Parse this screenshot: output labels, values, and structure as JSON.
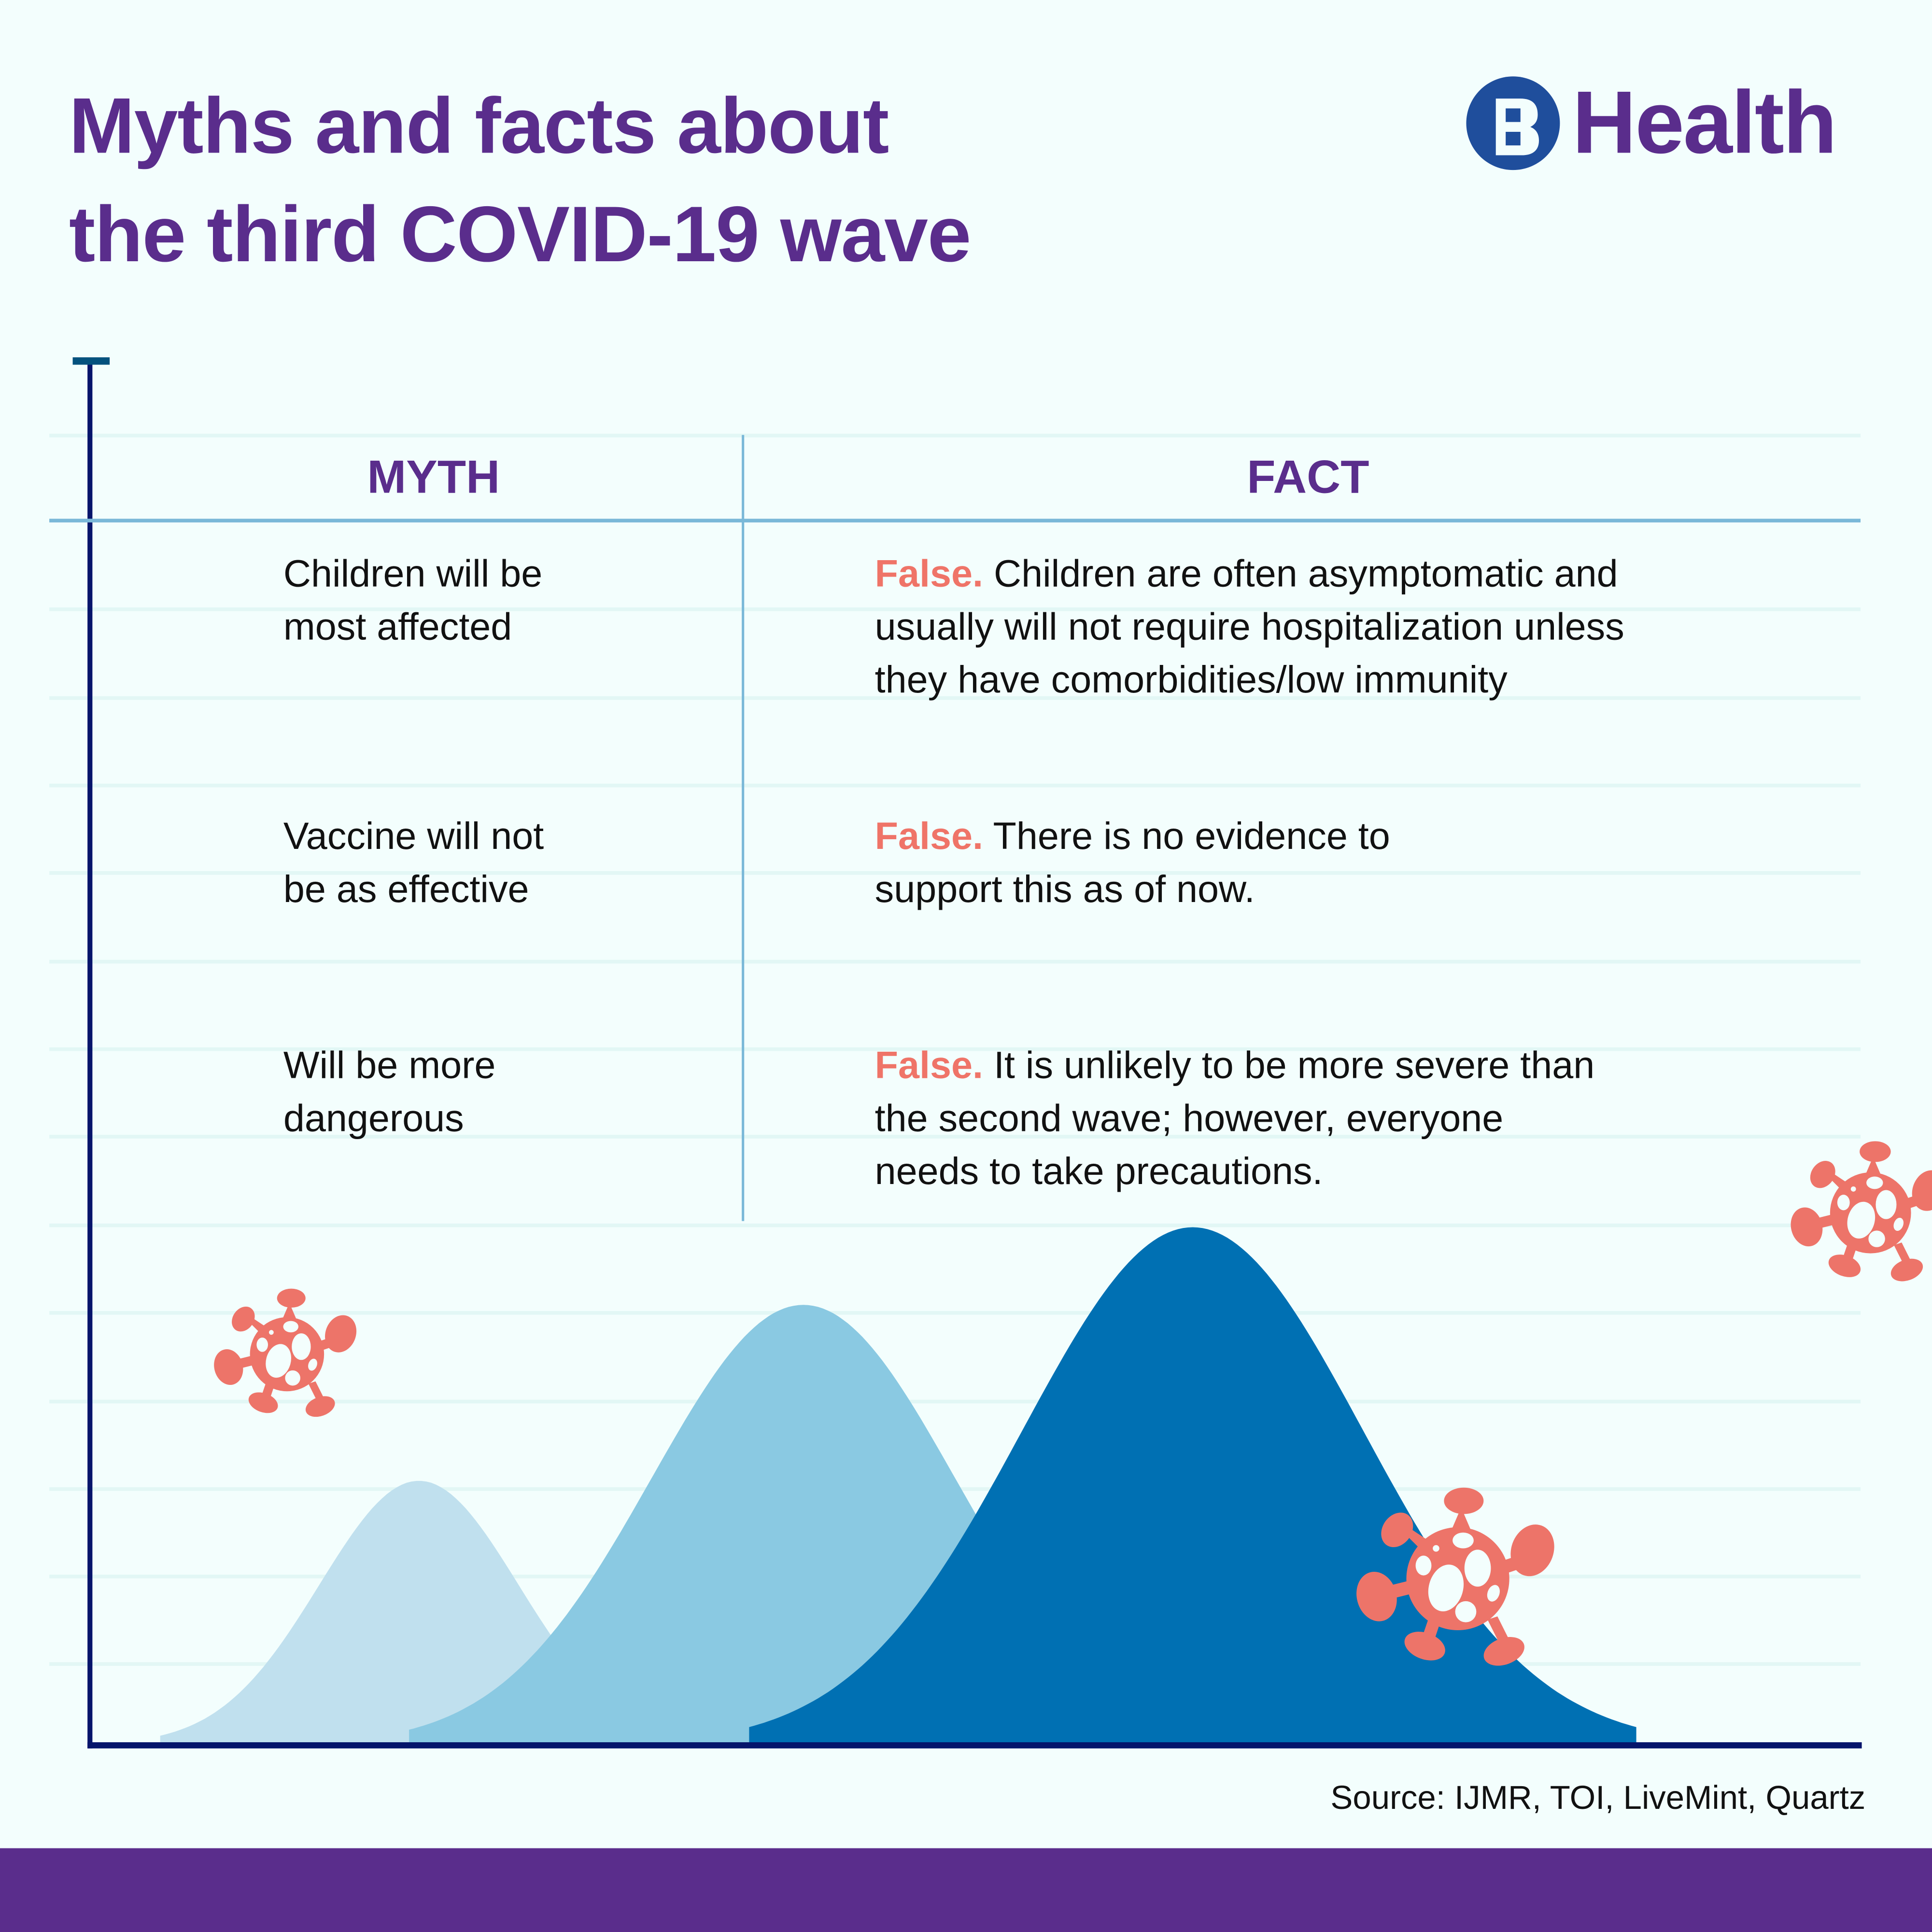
{
  "title": {
    "line1": "Myths and facts about",
    "line2": "the third COVID-19 wave"
  },
  "brand": {
    "logo_letter": "B",
    "name": "Health",
    "colors": {
      "logo_circle": "#1f4e9c",
      "text": "#5a2d8c"
    }
  },
  "table": {
    "headers": {
      "myth": "MYTH",
      "fact": "FACT"
    },
    "rows": [
      {
        "myth": [
          "Children will be",
          "most affected"
        ],
        "verdict": "False.",
        "fact": [
          "Children are often asymptomatic and",
          "usually will not require hospitalization unless",
          "they have comorbidities/low immunity"
        ]
      },
      {
        "myth": [
          "Vaccine will not",
          "be as effective"
        ],
        "verdict": "False.",
        "fact": [
          "There is no evidence to",
          "support this as of now."
        ]
      },
      {
        "myth": [
          "Will be more",
          "dangerous"
        ],
        "verdict": "False.",
        "fact": [
          "It is unlikely to be more severe than",
          "the second wave; however, everyone",
          "needs to take precautions."
        ]
      }
    ]
  },
  "illustration": {
    "waves": [
      {
        "name": "first-wave",
        "relative_height": 0.51,
        "color": "#c0e0ee"
      },
      {
        "name": "second-wave",
        "relative_height": 0.85,
        "color": "#8ac9e2"
      },
      {
        "name": "third-wave",
        "relative_height": 1.0,
        "color": "#0070b3"
      }
    ],
    "virus_color": "#ed7469"
  },
  "source": "Source: IJMR, TOI, LiveMint, Quartz",
  "colors": {
    "background": "#f3fefd",
    "accent_purple": "#5a2d8c",
    "false_label": "#ef7468",
    "axis": "#06146b"
  }
}
